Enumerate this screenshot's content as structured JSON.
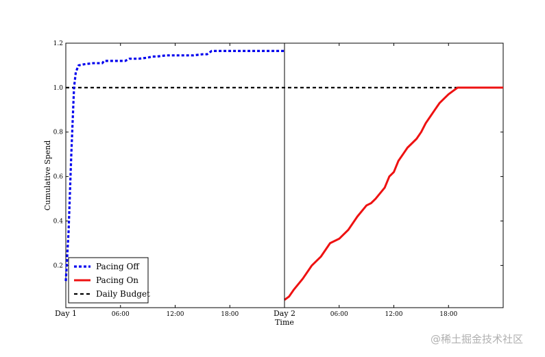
{
  "chart_data": {
    "type": "line",
    "xlabel": "Time",
    "ylabel": "Cumulative Spend",
    "xlim": [
      0,
      48
    ],
    "ylim": [
      0.01,
      1.2
    ],
    "x_ticks": [
      {
        "value": 0,
        "label": "Day 1",
        "style": "major"
      },
      {
        "value": 6,
        "label": "06:00",
        "style": "minor"
      },
      {
        "value": 12,
        "label": "12:00",
        "style": "minor"
      },
      {
        "value": 18,
        "label": "18:00",
        "style": "minor"
      },
      {
        "value": 24,
        "label": "Day 2",
        "style": "major"
      },
      {
        "value": 30,
        "label": "06:00",
        "style": "minor"
      },
      {
        "value": 36,
        "label": "12:00",
        "style": "minor"
      },
      {
        "value": 42,
        "label": "18:00",
        "style": "minor"
      }
    ],
    "y_ticks": [
      0.2,
      0.4,
      0.6,
      0.8,
      1.0,
      1.2
    ],
    "y_tick_labels": [
      "0.2",
      "0.4",
      "0.6",
      "0.8",
      "1.0",
      "1.2"
    ],
    "vline_x": 24,
    "grid": false,
    "legend_position": "lower-left",
    "series": [
      {
        "name": "Pacing Off",
        "color": "#0000ee",
        "style": "dotted",
        "x": [
          0,
          0.3,
          0.6,
          0.9,
          1.1,
          1.4,
          2,
          3,
          4,
          4.2,
          5,
          6,
          6.5,
          7,
          8,
          9,
          9.5,
          10,
          11,
          12,
          13,
          14,
          15,
          15.5,
          16,
          17,
          18,
          19,
          20,
          21,
          22,
          23,
          24
        ],
        "y": [
          0.13,
          0.35,
          0.7,
          1.0,
          1.07,
          1.1,
          1.105,
          1.11,
          1.11,
          1.12,
          1.12,
          1.12,
          1.12,
          1.13,
          1.13,
          1.135,
          1.14,
          1.14,
          1.145,
          1.145,
          1.145,
          1.145,
          1.15,
          1.15,
          1.165,
          1.165,
          1.165,
          1.165,
          1.165,
          1.165,
          1.165,
          1.165,
          1.165
        ]
      },
      {
        "name": "Pacing On",
        "color": "#ee1111",
        "style": "solid",
        "x": [
          24,
          24.5,
          25,
          26,
          27,
          28,
          29,
          30,
          31,
          32,
          33,
          33.5,
          34,
          35,
          35.5,
          36,
          36.5,
          37,
          37.5,
          38,
          38.5,
          39,
          39.5,
          40,
          40.5,
          41,
          41.5,
          42,
          42.5,
          43,
          43.5,
          44,
          44.5,
          45,
          46,
          47,
          48
        ],
        "y": [
          0.045,
          0.06,
          0.09,
          0.14,
          0.2,
          0.24,
          0.3,
          0.32,
          0.36,
          0.42,
          0.47,
          0.48,
          0.5,
          0.55,
          0.6,
          0.62,
          0.67,
          0.7,
          0.73,
          0.75,
          0.77,
          0.8,
          0.84,
          0.87,
          0.9,
          0.93,
          0.95,
          0.97,
          0.985,
          1.0,
          1.0,
          1.0,
          1.0,
          1.0,
          1.0,
          1.0,
          1.0
        ]
      },
      {
        "name": "Daily Budget",
        "color": "#000000",
        "style": "dashed",
        "x": [
          0,
          48
        ],
        "y": [
          1.0,
          1.0
        ]
      }
    ]
  },
  "watermark": "@稀土掘金技术社区"
}
